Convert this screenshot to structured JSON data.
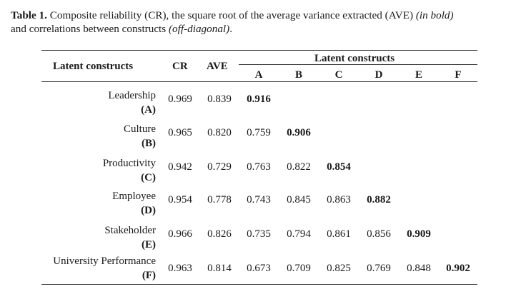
{
  "caption": {
    "label": "Table 1.",
    "text_main": " Composite reliability (CR), the square root of the average variance extracted (AVE) ",
    "text_bold_note": "(in bold)",
    "text_line2": "and correlations between constructs ",
    "text_offdiag_note": "(off-diagonal)",
    "text_end": "."
  },
  "table": {
    "header_construct": "Latent constructs",
    "header_cr": "CR",
    "header_ave": "AVE",
    "header_group": "Latent constructs",
    "columns": [
      "A",
      "B",
      "C",
      "D",
      "E",
      "F"
    ],
    "rows": [
      {
        "name": "Leadership",
        "code": "(A)",
        "cr": "0.969",
        "ave": "0.839",
        "values": [
          "0.916"
        ]
      },
      {
        "name": "Culture",
        "code": "(B)",
        "cr": "0.965",
        "ave": "0.820",
        "values": [
          "0.759",
          "0.906"
        ]
      },
      {
        "name": "Productivity",
        "code": "(C)",
        "cr": "0.942",
        "ave": "0.729",
        "values": [
          "0.763",
          "0.822",
          "0.854"
        ]
      },
      {
        "name": "Employee",
        "code": "(D)",
        "cr": "0.954",
        "ave": "0.778",
        "values": [
          "0.743",
          "0.845",
          "0.863",
          "0.882"
        ]
      },
      {
        "name": "Stakeholder",
        "code": "(E)",
        "cr": "0.966",
        "ave": "0.826",
        "values": [
          "0.735",
          "0.794",
          "0.861",
          "0.856",
          "0.909"
        ]
      },
      {
        "name": "University Performance",
        "code": "(F)",
        "cr": "0.963",
        "ave": "0.814",
        "values": [
          "0.673",
          "0.709",
          "0.825",
          "0.769",
          "0.848",
          "0.902"
        ]
      }
    ]
  }
}
